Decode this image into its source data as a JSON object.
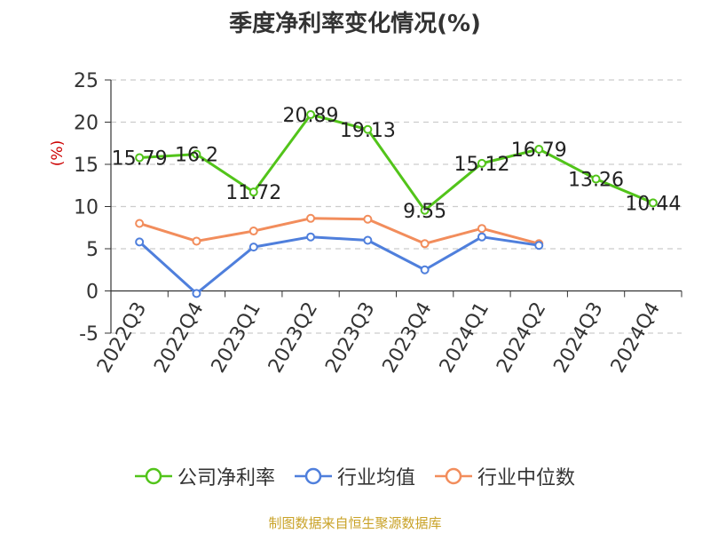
{
  "chart_data": {
    "type": "line",
    "title": "季度净利率变化情况(%)",
    "ylabel": "(%)",
    "xlabel": "",
    "ylim": [
      -5,
      25
    ],
    "yticks": [
      -5,
      0,
      5,
      10,
      15,
      20,
      25
    ],
    "grid": true,
    "legend_position": "bottom",
    "categories": [
      "2022Q3",
      "2022Q4",
      "2023Q1",
      "2023Q2",
      "2023Q3",
      "2023Q4",
      "2024Q1",
      "2024Q2",
      "2024Q3",
      "2024Q4"
    ],
    "series": [
      {
        "name": "公司净利率",
        "color": "#52c41a",
        "labels": true,
        "values": [
          15.79,
          16.2,
          11.72,
          20.89,
          19.13,
          9.55,
          15.12,
          16.79,
          13.26,
          10.44
        ]
      },
      {
        "name": "行业均值",
        "color": "#4f7fdc",
        "labels": false,
        "values": [
          5.8,
          -0.3,
          5.2,
          6.4,
          6.0,
          2.5,
          6.4,
          5.4,
          null,
          null
        ]
      },
      {
        "name": "行业中位数",
        "color": "#f28d5c",
        "labels": false,
        "values": [
          8.0,
          5.9,
          7.1,
          8.6,
          8.5,
          5.6,
          7.4,
          5.6,
          null,
          null
        ]
      }
    ]
  },
  "source_text": "制图数据来自恒生聚源数据库"
}
